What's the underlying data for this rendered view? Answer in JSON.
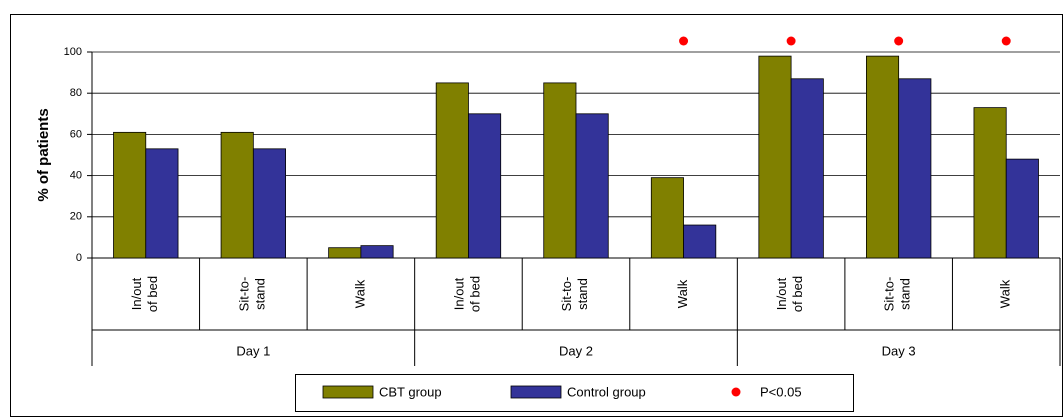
{
  "chart_data": {
    "type": "bar",
    "y_label": "% of patients",
    "categories": [
      "In/out\nof bed",
      "Sit-to-\nstand",
      "Walk",
      "In/out\nof bed",
      "Sit-to-\nstand",
      "Walk",
      "In/out\nof bed",
      "Sit-to-\nstand",
      "Walk"
    ],
    "groups": [
      "Day 1",
      "Day 2",
      "Day 3"
    ],
    "series": [
      {
        "name": "CBT group",
        "color": "#808000",
        "values": [
          61,
          61,
          5,
          85,
          85,
          39,
          98,
          98,
          73
        ]
      },
      {
        "name": "Control group",
        "color": "#333399",
        "values": [
          53,
          53,
          6,
          70,
          70,
          16,
          87,
          87,
          48
        ]
      }
    ],
    "significance": {
      "name": "P<0.05",
      "color": "#ff0000",
      "values": [
        false,
        false,
        false,
        false,
        false,
        true,
        true,
        true,
        true
      ]
    },
    "ylim": [
      0,
      100
    ],
    "yticks": [
      0,
      20,
      40,
      60,
      80,
      100
    ],
    "grid": true
  }
}
